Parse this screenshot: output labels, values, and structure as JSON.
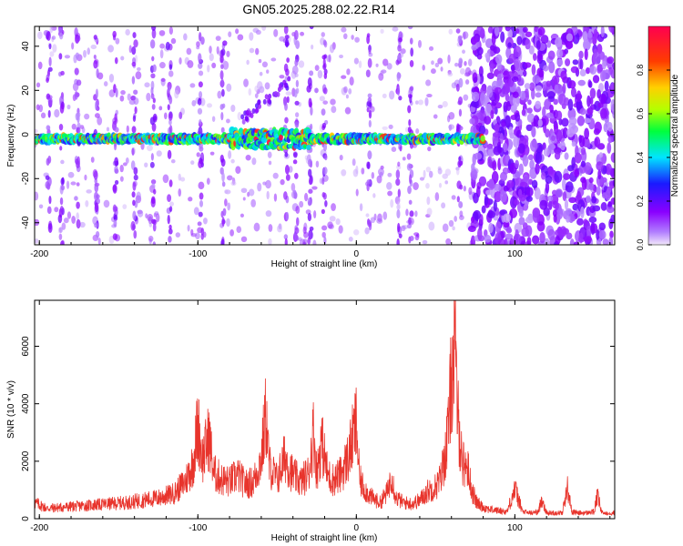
{
  "title": "GN05.2025.288.02.22.R14",
  "chart_data": [
    {
      "type": "heatmap",
      "title": "GN05.2025.288.02.22.R14",
      "xlabel": "Height of straight line (km)",
      "ylabel": "Frequency (Hz)",
      "xlim": [
        -203,
        163
      ],
      "ylim": [
        -50,
        49
      ],
      "xticks": [
        -200,
        -100,
        0,
        100
      ],
      "yticks": [
        -40,
        -20,
        0,
        20,
        40
      ],
      "colorbar": {
        "label": "Normalized spectral amplitude",
        "range": [
          0.0,
          1.0
        ],
        "ticks": [
          0.0,
          0.2,
          0.4,
          0.6,
          0.8
        ],
        "tick_labels": [
          "0.0",
          "0.2",
          "0.4",
          "0.6",
          "0.8"
        ],
        "colormap": [
          "#f2e8fa",
          "#8a00ff",
          "#1a1aff",
          "#00e5ff",
          "#00ff3c",
          "#b4ff00",
          "#ffd000",
          "#ff3c00",
          "#ff0050"
        ]
      },
      "main_band": {
        "center_freq_hz": -2,
        "x_start_km": -203,
        "x_end_km": 80,
        "description_values": {
          "typical_amplitude": 0.45,
          "peak_amplitude": 0.9
        }
      },
      "streaks_km": [
        -194,
        -186,
        -176,
        -164,
        -152,
        -140,
        -128,
        -118,
        -98,
        -84,
        -44,
        -38,
        -29,
        -20,
        8,
        27,
        34,
        65
      ],
      "noise_region_km": [
        73,
        163
      ]
    },
    {
      "type": "line",
      "xlabel": "Height of straight line (km)",
      "ylabel": "SNR (10 * v/v)",
      "xlim": [
        -203,
        163
      ],
      "ylim": [
        0,
        7600
      ],
      "xticks": [
        -200,
        -100,
        0,
        100
      ],
      "yticks": [
        0,
        2000,
        4000,
        6000
      ],
      "series": [
        {
          "name": "SNR",
          "color": "#e8342c",
          "x": [
            -203,
            -195,
            -185,
            -175,
            -165,
            -155,
            -145,
            -135,
            -125,
            -115,
            -108,
            -103,
            -100,
            -97,
            -93,
            -90,
            -85,
            -80,
            -75,
            -70,
            -65,
            -60,
            -57,
            -55,
            -50,
            -45,
            -40,
            -35,
            -30,
            -27,
            -25,
            -22,
            -18,
            -15,
            -10,
            -5,
            -2,
            0,
            2,
            5,
            10,
            15,
            20,
            22,
            25,
            30,
            35,
            40,
            45,
            50,
            53,
            56,
            58,
            60,
            62,
            64,
            67,
            70,
            73,
            76,
            80,
            85,
            90,
            95,
            100,
            105,
            110,
            115,
            117,
            120,
            125,
            130,
            133,
            136,
            140,
            145,
            150,
            152,
            155,
            163
          ],
          "values": [
            700,
            450,
            500,
            550,
            600,
            650,
            700,
            800,
            900,
            1100,
            1600,
            2400,
            4100,
            2600,
            3600,
            2000,
            1700,
            1600,
            1900,
            1500,
            1600,
            2600,
            4600,
            2300,
            1700,
            2700,
            1900,
            1600,
            2000,
            3800,
            2000,
            3400,
            1900,
            1700,
            1900,
            2700,
            3600,
            4200,
            1700,
            1300,
            900,
            700,
            1200,
            2000,
            900,
            700,
            650,
            800,
            1200,
            1400,
            1700,
            2800,
            3800,
            6200,
            7600,
            4500,
            2400,
            2300,
            1200,
            700,
            500,
            400,
            350,
            300,
            1300,
            300,
            250,
            300,
            900,
            250,
            250,
            250,
            1400,
            300,
            250,
            250,
            300,
            1000,
            250,
            250
          ]
        }
      ]
    }
  ]
}
